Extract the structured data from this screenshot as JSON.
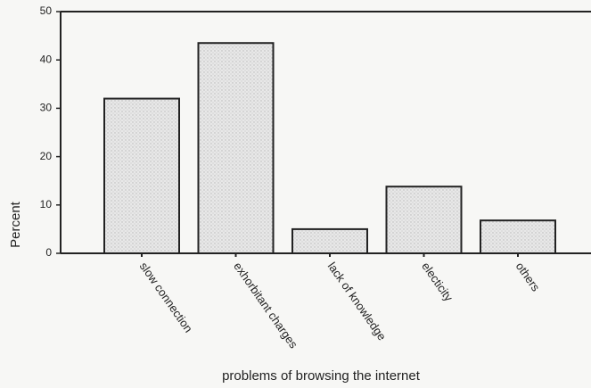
{
  "chart_data": {
    "type": "bar",
    "categories": [
      "slow connection",
      "exhorbitant charges",
      "lack of knowledge",
      "electicity",
      "others"
    ],
    "values": [
      32,
      43.5,
      5,
      13.8,
      6.8
    ],
    "color": "#e4e4e4",
    "ylim": [
      0,
      50
    ],
    "yticks": [
      0,
      10,
      20,
      30,
      40,
      50
    ],
    "xlabel": "problems of browsing the internet",
    "ylabel": "Percent",
    "grid": false
  }
}
